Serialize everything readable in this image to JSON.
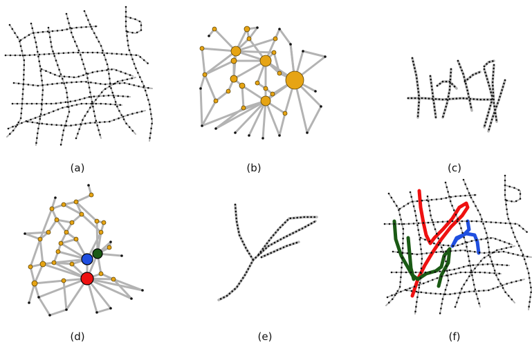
{
  "figure": {
    "panels": [
      {
        "id": "a",
        "caption": "(a)",
        "content": "metro-network-grayscale"
      },
      {
        "id": "b",
        "caption": "(b)",
        "content": "hub-graph-orange"
      },
      {
        "id": "c",
        "caption": "(c)",
        "content": "sparse-subnetwork"
      },
      {
        "id": "d",
        "caption": "(d)",
        "content": "hub-graph-highlighted"
      },
      {
        "id": "e",
        "caption": "(e)",
        "content": "small-subnetwork"
      },
      {
        "id": "f",
        "caption": "(f)",
        "content": "metro-network-colored-lines"
      }
    ],
    "colors": {
      "edge": "#b3b3b3",
      "station": "#111111",
      "hub": "#e6a414",
      "hub_stroke": "#5a4000",
      "highlight_red": "#ee1111",
      "highlight_blue": "#1f4fe0",
      "highlight_green": "#1a5a14"
    }
  }
}
